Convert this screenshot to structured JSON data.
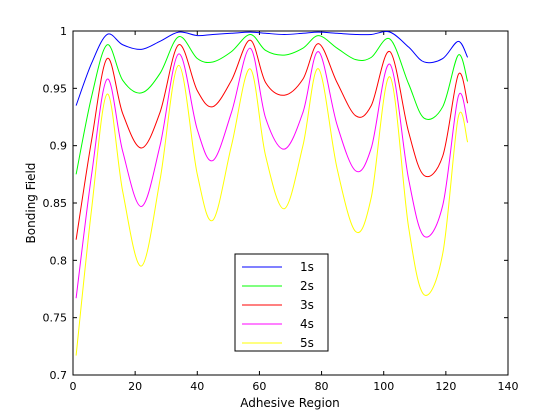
{
  "chart_data": {
    "type": "line",
    "title": "",
    "xlabel": "Adhesive Region",
    "ylabel": "Bonding Field",
    "xlim": [
      0,
      140
    ],
    "ylim": [
      0.7,
      1.0
    ],
    "xticks": [
      0,
      20,
      40,
      60,
      80,
      100,
      120,
      140
    ],
    "yticks": [
      0.7,
      0.75,
      0.8,
      0.85,
      0.9,
      0.95,
      1.0
    ],
    "ytick_labels": [
      "0.7",
      "0.75",
      "0.8",
      "0.85",
      "0.9",
      "0.95",
      "1"
    ],
    "grid": false,
    "legend_position": "bottom-center",
    "x": [
      1,
      6,
      11,
      16,
      22,
      28,
      34,
      40,
      45,
      51,
      57,
      62,
      68,
      74,
      79,
      85,
      91,
      96,
      102,
      108,
      113,
      119,
      124,
      127
    ],
    "series": [
      {
        "name": "1s",
        "color": "#0000ff",
        "values": [
          0.935,
          0.972,
          0.997,
          0.988,
          0.984,
          0.991,
          0.999,
          0.996,
          0.997,
          0.998,
          0.999,
          0.998,
          0.997,
          0.998,
          0.999,
          0.998,
          0.997,
          0.997,
          0.999,
          0.986,
          0.973,
          0.976,
          0.991,
          0.977
        ]
      },
      {
        "name": "2s",
        "color": "#00ff00",
        "values": [
          0.875,
          0.943,
          0.988,
          0.957,
          0.946,
          0.963,
          0.995,
          0.976,
          0.973,
          0.982,
          0.997,
          0.983,
          0.979,
          0.985,
          0.996,
          0.985,
          0.975,
          0.977,
          0.993,
          0.954,
          0.924,
          0.934,
          0.979,
          0.956
        ]
      },
      {
        "name": "3s",
        "color": "#ff0000",
        "values": [
          0.818,
          0.905,
          0.976,
          0.928,
          0.898,
          0.929,
          0.988,
          0.948,
          0.934,
          0.957,
          0.992,
          0.955,
          0.944,
          0.958,
          0.989,
          0.955,
          0.926,
          0.935,
          0.982,
          0.912,
          0.874,
          0.891,
          0.962,
          0.937
        ]
      },
      {
        "name": "4s",
        "color": "#ff00ff",
        "values": [
          0.767,
          0.875,
          0.958,
          0.895,
          0.847,
          0.9,
          0.98,
          0.914,
          0.887,
          0.929,
          0.985,
          0.924,
          0.897,
          0.929,
          0.982,
          0.918,
          0.878,
          0.898,
          0.971,
          0.871,
          0.821,
          0.848,
          0.943,
          0.92
        ]
      },
      {
        "name": "5s",
        "color": "#ffff00",
        "values": [
          0.717,
          0.845,
          0.945,
          0.86,
          0.795,
          0.87,
          0.97,
          0.875,
          0.835,
          0.9,
          0.967,
          0.891,
          0.845,
          0.9,
          0.967,
          0.88,
          0.825,
          0.855,
          0.96,
          0.829,
          0.77,
          0.806,
          0.925,
          0.903
        ]
      }
    ]
  }
}
